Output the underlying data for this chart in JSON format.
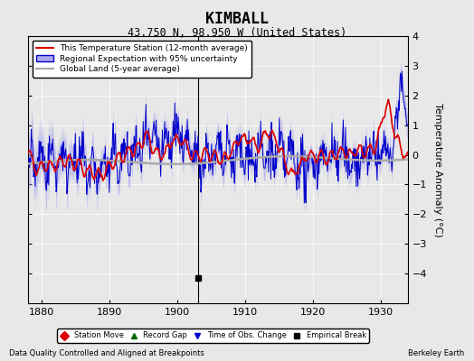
{
  "title": "KIMBALL",
  "subtitle": "43.750 N, 98.950 W (United States)",
  "ylabel": "Temperature Anomaly (°C)",
  "xlabel_left": "Data Quality Controlled and Aligned at Breakpoints",
  "xlabel_right": "Berkeley Earth",
  "xmin": 1878,
  "xmax": 1934,
  "ymin": -5,
  "ymax": 4,
  "yticks": [
    -4,
    -3,
    -2,
    -1,
    0,
    1,
    2,
    3,
    4
  ],
  "xticks": [
    1880,
    1890,
    1900,
    1910,
    1920,
    1930
  ],
  "bg_color": "#e8e8e8",
  "plot_bg_color": "#e8e8e8",
  "red_color": "#dd0000",
  "blue_color": "#0000cc",
  "blue_fill_color": "#aaaaee",
  "gray_color": "#aaaaaa",
  "empirical_break_year": 1903,
  "empirical_break_value": -4.15,
  "legend_labels": [
    "This Temperature Station (12-month average)",
    "Regional Expectation with 95% uncertainty",
    "Global Land (5-year average)"
  ],
  "bottom_legend": [
    {
      "label": "Station Move",
      "color": "#dd0000",
      "marker": "D"
    },
    {
      "label": "Record Gap",
      "color": "#006600",
      "marker": "^"
    },
    {
      "label": "Time of Obs. Change",
      "color": "#0000cc",
      "marker": "v"
    },
    {
      "label": "Empirical Break",
      "color": "#000000",
      "marker": "s"
    }
  ]
}
